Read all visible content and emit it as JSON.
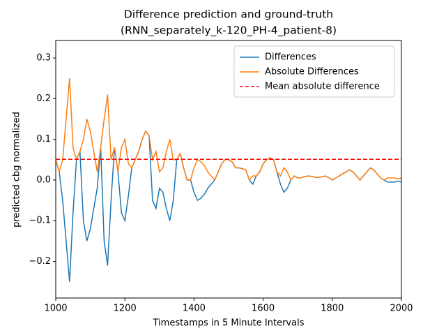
{
  "chart_data": {
    "type": "line",
    "title": [
      "Difference prediction and ground-truth",
      "(RNN_separately_k-120_PH-4_patient-8)"
    ],
    "xlabel": "Timestamps in 5 Minute Intervals",
    "ylabel": "predicted cbg normalized",
    "x": [
      1000,
      1010,
      1020,
      1030,
      1040,
      1050,
      1060,
      1070,
      1080,
      1090,
      1100,
      1110,
      1120,
      1130,
      1140,
      1150,
      1160,
      1170,
      1180,
      1190,
      1200,
      1210,
      1220,
      1230,
      1240,
      1250,
      1260,
      1270,
      1280,
      1290,
      1300,
      1310,
      1320,
      1330,
      1340,
      1350,
      1360,
      1370,
      1380,
      1390,
      1400,
      1410,
      1420,
      1430,
      1440,
      1450,
      1460,
      1470,
      1480,
      1490,
      1500,
      1510,
      1520,
      1530,
      1540,
      1550,
      1560,
      1570,
      1580,
      1590,
      1600,
      1610,
      1620,
      1630,
      1640,
      1650,
      1660,
      1670,
      1680,
      1690,
      1700,
      1710,
      1720,
      1730,
      1740,
      1750,
      1760,
      1770,
      1780,
      1790,
      1800,
      1810,
      1820,
      1830,
      1840,
      1850,
      1860,
      1870,
      1880,
      1890,
      1900,
      1910,
      1920,
      1930,
      1940,
      1950,
      1960,
      1970,
      1980,
      1990,
      2000
    ],
    "series": [
      {
        "name": "Differences",
        "color": "#1f77b4",
        "values": [
          0.05,
          0.02,
          -0.05,
          -0.15,
          -0.25,
          -0.08,
          0.05,
          0.07,
          -0.1,
          -0.15,
          -0.12,
          -0.07,
          -0.02,
          0.08,
          -0.15,
          -0.21,
          -0.05,
          0.08,
          0.02,
          -0.08,
          -0.1,
          -0.04,
          0.03,
          0.05,
          0.07,
          0.1,
          0.12,
          0.11,
          -0.05,
          -0.07,
          -0.02,
          -0.03,
          -0.07,
          -0.1,
          -0.05,
          0.05,
          0.065,
          0.03,
          0.0,
          0.0,
          -0.03,
          -0.05,
          -0.045,
          -0.035,
          -0.02,
          -0.01,
          0.0,
          0.02,
          0.04,
          0.05,
          0.05,
          0.045,
          0.03,
          0.03,
          0.028,
          0.025,
          0.0,
          -0.01,
          0.01,
          0.02,
          0.04,
          0.05,
          0.055,
          0.05,
          0.02,
          -0.01,
          -0.03,
          -0.02,
          0.0,
          0.01,
          0.005,
          0.006,
          0.008,
          0.01,
          0.009,
          0.007,
          0.006,
          0.008,
          0.01,
          0.006,
          0.0,
          0.005,
          0.01,
          0.015,
          0.02,
          0.025,
          0.02,
          0.01,
          0.0,
          0.01,
          0.02,
          0.03,
          0.025,
          0.015,
          0.005,
          0.0,
          -0.005,
          -0.005,
          -0.005,
          -0.003,
          -0.005
        ]
      },
      {
        "name": "Absolute Differences",
        "color": "#ff7f0e",
        "values": [
          0.05,
          0.02,
          0.05,
          0.15,
          0.25,
          0.08,
          0.05,
          0.07,
          0.1,
          0.15,
          0.12,
          0.07,
          0.02,
          0.08,
          0.15,
          0.21,
          0.05,
          0.08,
          0.02,
          0.08,
          0.1,
          0.04,
          0.03,
          0.05,
          0.07,
          0.1,
          0.12,
          0.11,
          0.05,
          0.07,
          0.02,
          0.03,
          0.07,
          0.1,
          0.05,
          0.05,
          0.065,
          0.03,
          0.0,
          0.0,
          0.03,
          0.05,
          0.045,
          0.035,
          0.02,
          0.01,
          0.0,
          0.02,
          0.04,
          0.05,
          0.05,
          0.045,
          0.03,
          0.03,
          0.028,
          0.025,
          0.0,
          0.01,
          0.01,
          0.02,
          0.04,
          0.05,
          0.055,
          0.05,
          0.02,
          0.01,
          0.03,
          0.02,
          0.0,
          0.01,
          0.005,
          0.006,
          0.008,
          0.01,
          0.009,
          0.007,
          0.006,
          0.008,
          0.01,
          0.006,
          0.0,
          0.005,
          0.01,
          0.015,
          0.02,
          0.025,
          0.02,
          0.01,
          0.0,
          0.01,
          0.02,
          0.03,
          0.025,
          0.015,
          0.005,
          0.0,
          0.005,
          0.005,
          0.005,
          0.003,
          0.005
        ]
      }
    ],
    "hlines": [
      {
        "name": "Mean absolute difference",
        "color": "#ff0000",
        "value": 0.051,
        "style": "dashed"
      }
    ],
    "xlim": [
      1000,
      2000
    ],
    "ylim": [
      -0.29,
      0.343
    ],
    "xticks": [
      1000,
      1200,
      1400,
      1600,
      1800,
      2000
    ],
    "yticks": [
      {
        "value": -0.2,
        "label": "−0.2"
      },
      {
        "value": -0.1,
        "label": "−0.1"
      },
      {
        "value": 0,
        "label": "0.0"
      },
      0.1,
      0.2,
      0.3
    ],
    "legend": "upper right",
    "grid": false
  }
}
